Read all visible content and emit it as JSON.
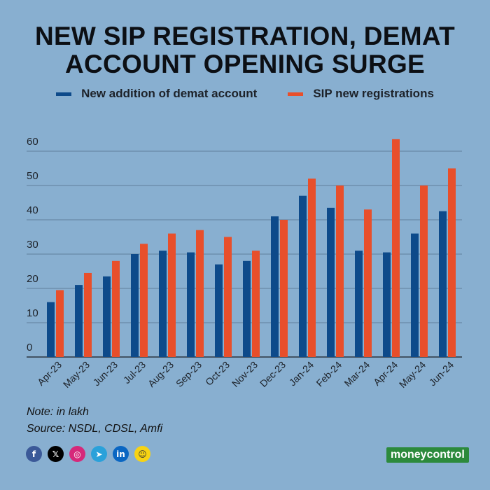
{
  "title_line1": "NEW SIP REGISTRATION, DEMAT",
  "title_line2": "ACCOUNT OPENING SURGE",
  "note": "Note: in lakh",
  "source": "Source: NSDL, CDSL, Amfi",
  "logo_text": "moneycontrol",
  "colors": {
    "background": "#88afd0",
    "demat": "#0d4a8a",
    "sip": "#e84f2b",
    "grid": "#5f7f9c",
    "logo": "#2c8a3c"
  },
  "social_icons": [
    {
      "name": "facebook-icon",
      "glyph": "f",
      "color": "#3b5998"
    },
    {
      "name": "x-icon",
      "glyph": "𝕏",
      "color": "#000000"
    },
    {
      "name": "instagram-icon",
      "glyph": "◎",
      "color": "#d6297a"
    },
    {
      "name": "telegram-icon",
      "glyph": "➤",
      "color": "#2aa1da"
    },
    {
      "name": "linkedin-icon",
      "glyph": "in",
      "color": "#0a66c2"
    },
    {
      "name": "snapchat-icon",
      "glyph": "☺",
      "color": "#f7d313"
    }
  ],
  "chart_data": {
    "type": "bar",
    "categories": [
      "Apr-23",
      "May-23",
      "Jun-23",
      "Jul-23",
      "Aug-23",
      "Sep-23",
      "Oct-23",
      "Nov-23",
      "Dec-23",
      "Jan-24",
      "Feb-24",
      "Mar-24",
      "Apr-24",
      "May-24",
      "Jun-24"
    ],
    "series": [
      {
        "name": "New addition of demat account",
        "values": [
          16,
          21,
          23.5,
          30,
          31,
          30.5,
          27,
          28,
          41,
          47,
          43.5,
          31,
          30.5,
          36,
          42.5
        ]
      },
      {
        "name": "SIP new registrations",
        "values": [
          19.5,
          24.5,
          28,
          33,
          36,
          37,
          35,
          31,
          40,
          52,
          50,
          43,
          63.5,
          50,
          55
        ]
      }
    ],
    "yticks": [
      0,
      10,
      20,
      30,
      40,
      50,
      60
    ],
    "ylim": [
      0,
      65
    ],
    "grid": true,
    "legend": "top-center"
  }
}
